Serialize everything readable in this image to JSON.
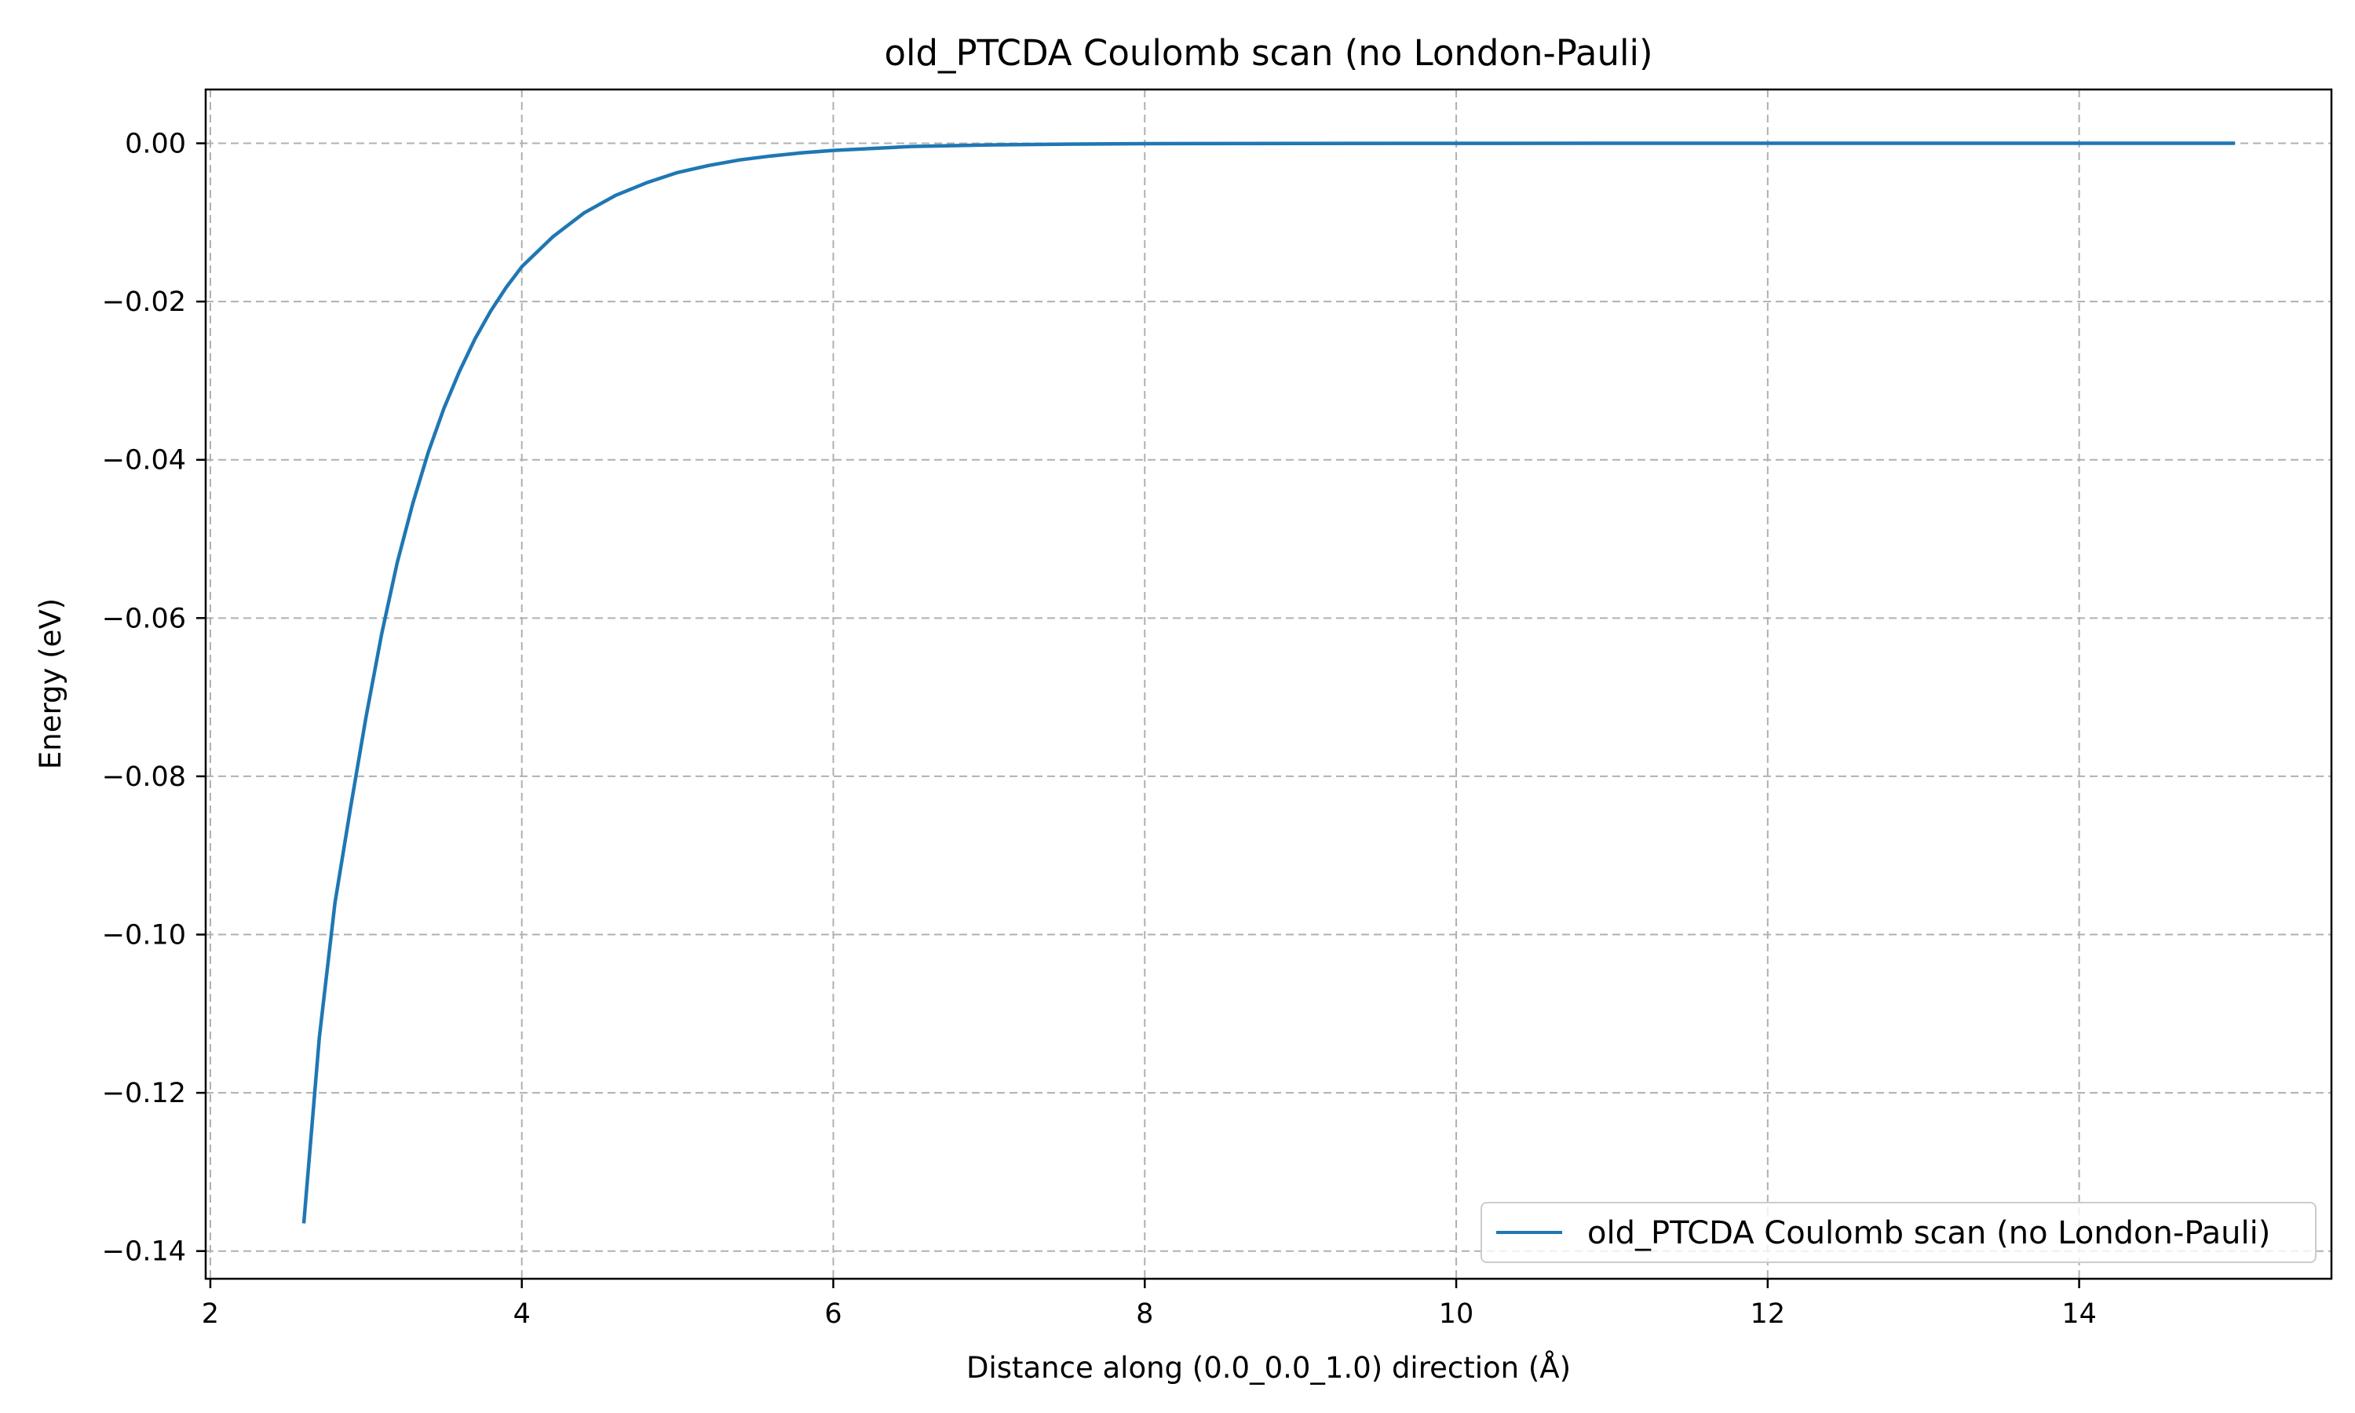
{
  "chart_data": {
    "type": "line",
    "title": "old_PTCDA Coulomb scan (no London-Pauli)",
    "xlabel": "Distance along (0.0_0.0_1.0) direction (Å)",
    "ylabel": "Energy (eV)",
    "xlim": [
      1.97,
      15.62
    ],
    "ylim": [
      -0.1435,
      0.0068
    ],
    "xticks": [
      2,
      4,
      6,
      8,
      10,
      12,
      14
    ],
    "xtick_labels": [
      "2",
      "4",
      "6",
      "8",
      "10",
      "12",
      "14"
    ],
    "yticks": [
      0.0,
      -0.02,
      -0.04,
      -0.06,
      -0.08,
      -0.1,
      -0.12,
      -0.14
    ],
    "ytick_labels": [
      "0.00",
      "−0.02",
      "−0.04",
      "−0.06",
      "−0.08",
      "−0.10",
      "−0.12",
      "−0.14"
    ],
    "grid": true,
    "legend_position": "lower right",
    "series": [
      {
        "name": "old_PTCDA Coulomb scan (no London-Pauli)",
        "color": "#1f77b4",
        "x": [
          2.6,
          2.7,
          2.8,
          2.9,
          3.0,
          3.1,
          3.2,
          3.3,
          3.4,
          3.5,
          3.6,
          3.7,
          3.8,
          3.9,
          4.0,
          4.2,
          4.4,
          4.6,
          4.8,
          5.0,
          5.2,
          5.4,
          5.6,
          5.8,
          6.0,
          6.5,
          7.0,
          7.5,
          8.0,
          9.0,
          10.0,
          11.0,
          12.0,
          13.0,
          14.0,
          15.0
        ],
        "y": [
          -0.1365,
          -0.113,
          -0.096,
          -0.084,
          -0.0725,
          -0.062,
          -0.053,
          -0.0455,
          -0.039,
          -0.0335,
          -0.0288,
          -0.0247,
          -0.0212,
          -0.0182,
          -0.0156,
          -0.0118,
          -0.0088,
          -0.0066,
          -0.005,
          -0.0037,
          -0.0028,
          -0.0021,
          -0.0016,
          -0.0012,
          -0.0009,
          -0.0004,
          -0.0002,
          -0.0001,
          -5e-05,
          -2e-05,
          -1e-05,
          0.0,
          0.0,
          0.0,
          0.0,
          0.0
        ]
      }
    ]
  }
}
